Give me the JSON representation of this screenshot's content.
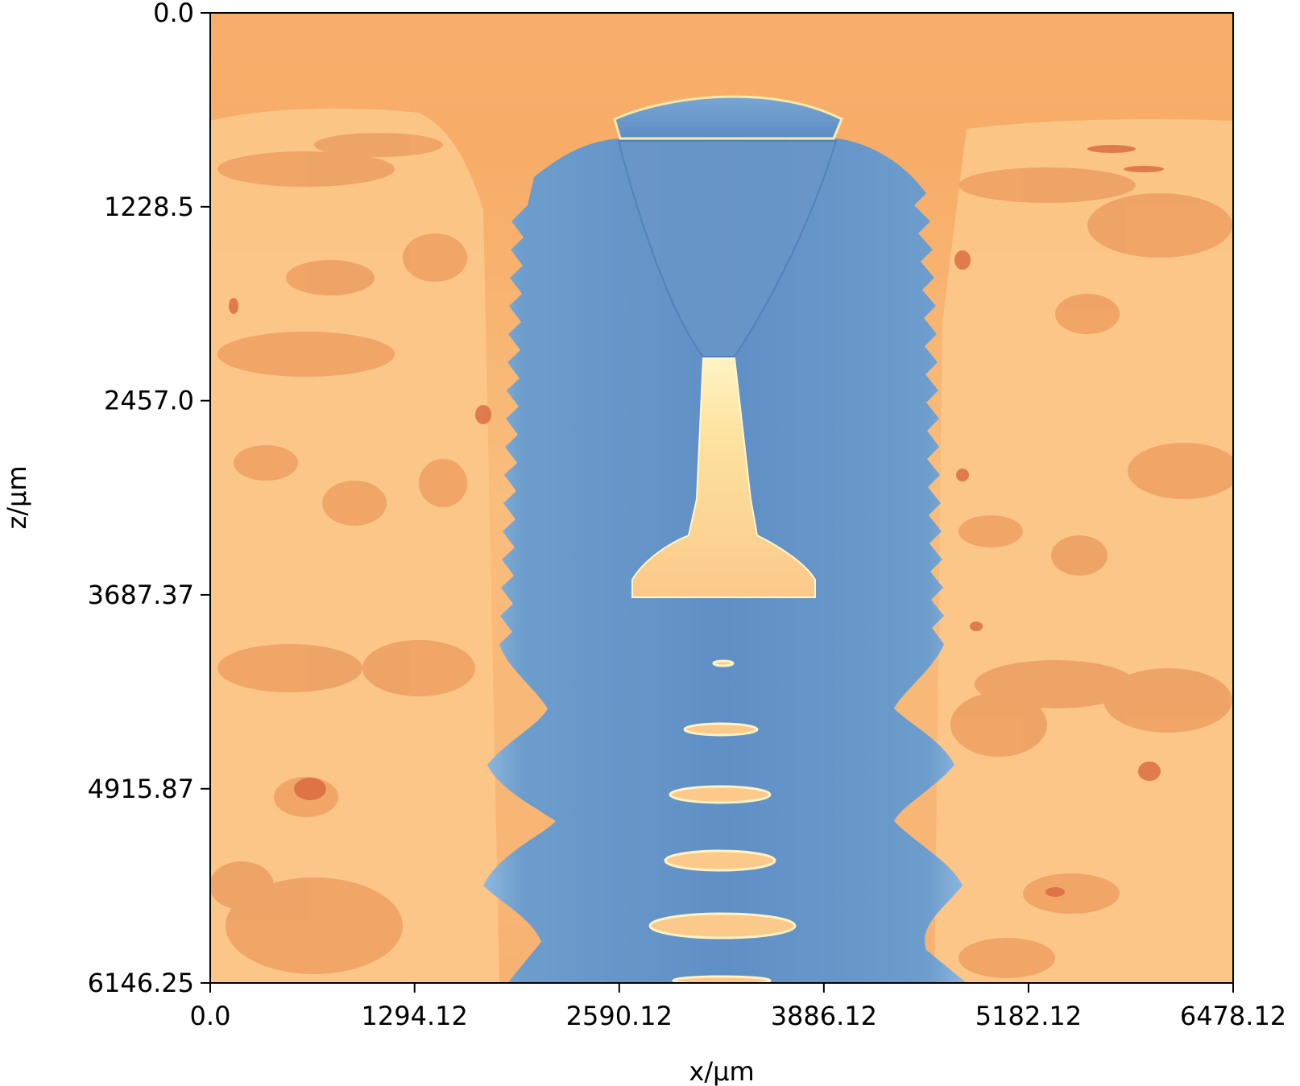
{
  "chart_data": {
    "type": "heatmap",
    "title": "",
    "xlabel": "x/µm",
    "ylabel": "z/µm",
    "xlim": [
      0.0,
      6478.12
    ],
    "ylim": [
      6146.25,
      0.0
    ],
    "y_axis_inverted": true,
    "grid": false,
    "legend": "none",
    "x_ticks": [
      0.0,
      1294.12,
      2590.12,
      3886.12,
      5182.12,
      6478.12
    ],
    "x_tick_labels": [
      "0.0",
      "1294.12",
      "2590.12",
      "3886.12",
      "5182.12",
      "6478.12"
    ],
    "y_ticks": [
      0.0,
      1228.5,
      2457.0,
      3687.37,
      4915.87,
      6146.25
    ],
    "y_tick_labels": [
      "0.0",
      "1228.5",
      "2457.0",
      "3687.37",
      "4915.87",
      "6146.25"
    ],
    "colormap": "RdYlBu (reversed)",
    "colors": {
      "background_high": "#f7b46e",
      "bone_dark": "#ec9a5e",
      "bone_light": "#fbc88a",
      "pore_red": "#d9683f",
      "implant_blue": "#6797c9",
      "implant_light": "#9cc0e0",
      "edge_yellow": "#fde9a8"
    }
  }
}
